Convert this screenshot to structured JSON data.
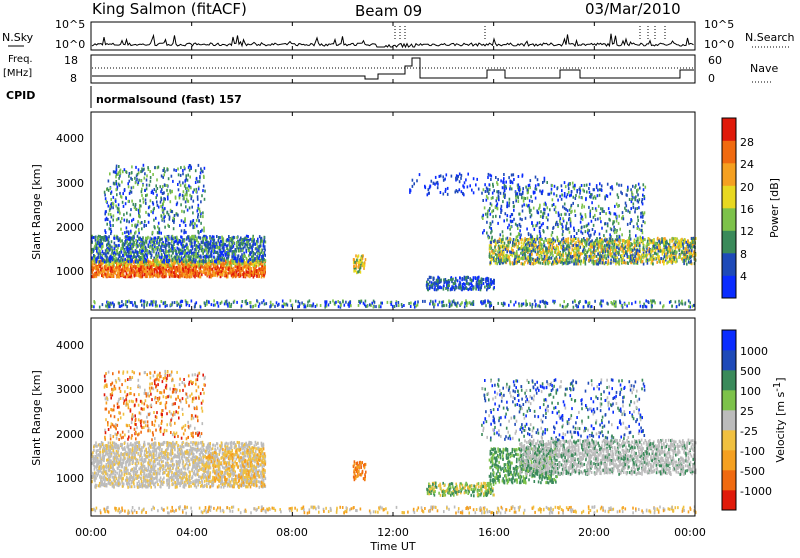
{
  "header": {
    "station": "King Salmon (fitACF)",
    "beam": "Beam 09",
    "date": "03/Mar/2010"
  },
  "noise_panel": {
    "left_label": "N.Sky",
    "right_label": "N.Search",
    "ticks_left": [
      "10^5",
      "10^0"
    ],
    "ticks_right": [
      "10^5",
      "10^0"
    ]
  },
  "freq_panel": {
    "left_label_line1": "Freq.",
    "left_label_line2": "[MHz]",
    "right_label": "Nave",
    "ticks_left": [
      "18",
      "8"
    ],
    "ticks_right": [
      "60",
      "0"
    ]
  },
  "cpid": {
    "label": "CPID",
    "value": "normalsound (fast) 157"
  },
  "x_axis": {
    "label": "Time UT",
    "ticks": [
      "00:00",
      "04:00",
      "08:00",
      "12:00",
      "16:00",
      "20:00",
      "00:00"
    ]
  },
  "colors": {
    "power": [
      "#0a2cff",
      "#1e4ab8",
      "#3a8a5a",
      "#7dc24a",
      "#e8d820",
      "#f5a020",
      "#f06a10",
      "#e01a0a"
    ],
    "velocity": [
      "#e01a0a",
      "#f06a10",
      "#f5a020",
      "#f0c040",
      "#bcbcbc",
      "#7dc24a",
      "#3a8a5a",
      "#1e4ab8",
      "#0a2cff"
    ]
  },
  "chart_data": [
    {
      "type": "heatmap",
      "quantity": "Power",
      "xlabel": "Time UT",
      "ylabel": "Slant Range [km]",
      "xlim": [
        0,
        24
      ],
      "ylim": [
        0,
        4600
      ],
      "yticks": [
        "1000",
        "2000",
        "3000",
        "4000"
      ],
      "colorbar": {
        "label": "Power [dB]",
        "ticks": [
          "4",
          "8",
          "12",
          "16",
          "20",
          "24",
          "28"
        ]
      }
    },
    {
      "type": "heatmap",
      "quantity": "Velocity",
      "xlabel": "Time UT",
      "ylabel": "Slant Range [km]",
      "xlim": [
        0,
        24
      ],
      "ylim": [
        0,
        4600
      ],
      "yticks": [
        "1000",
        "2000",
        "3000",
        "4000"
      ],
      "colorbar": {
        "label": "Velocity [m s",
        "label_sup": "-1",
        "label_end": "]",
        "ticks": [
          "1000",
          "500",
          "100",
          "25",
          "-25",
          "-100",
          "-500",
          "-1000"
        ]
      }
    }
  ]
}
